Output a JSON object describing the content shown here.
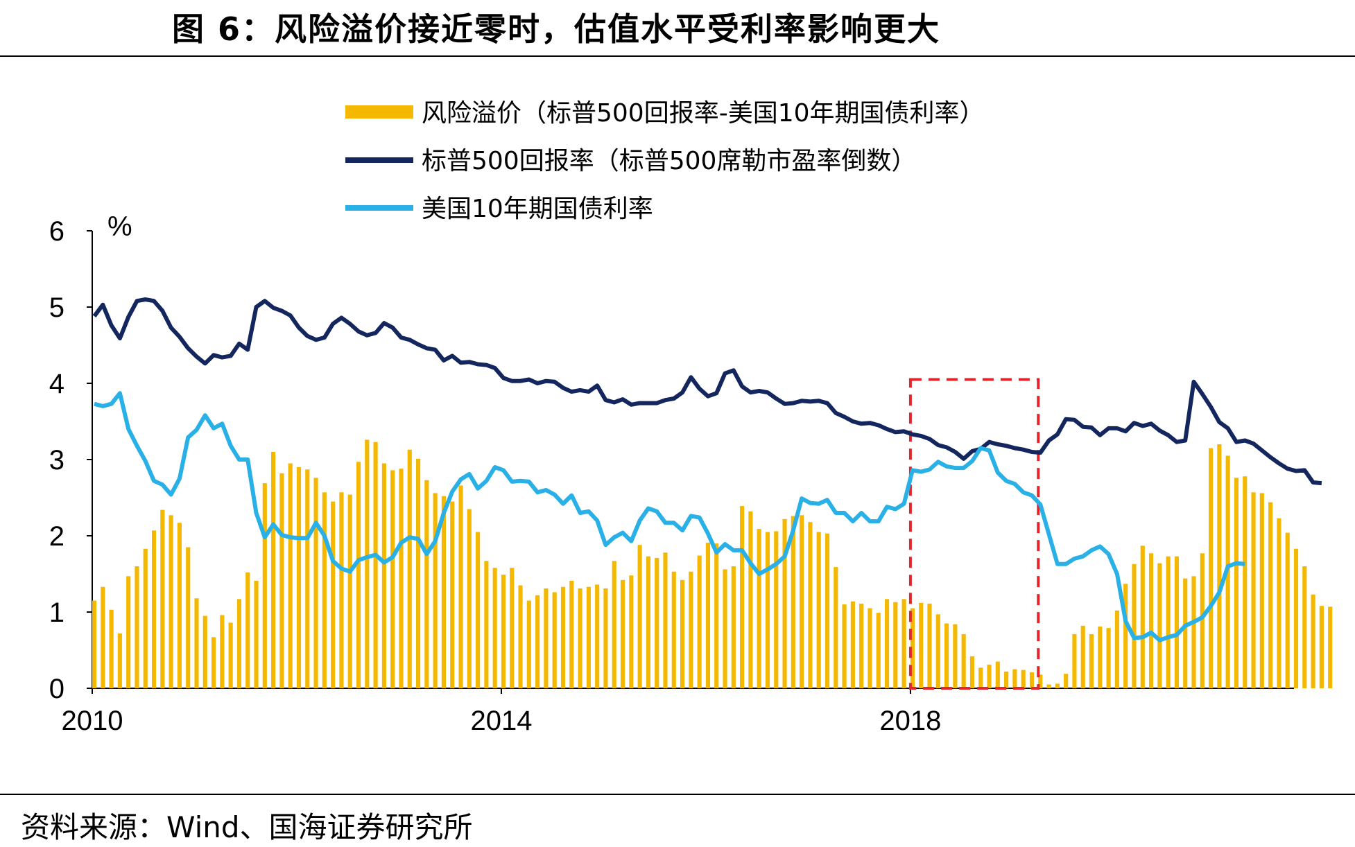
{
  "title": "图 6：风险溢价接近零时，估值水平受利率影响更大",
  "source": "资料来源：Wind、国海证券研究所",
  "chart_data": {
    "type": "bar+line",
    "unit_label": "%",
    "ylim": [
      0,
      6
    ],
    "yticks": [
      "0",
      "1",
      "2",
      "3",
      "4",
      "5",
      "6"
    ],
    "xlim": [
      2010,
      2021.75
    ],
    "xticks": [
      {
        "value": 2010,
        "label": "2010"
      },
      {
        "value": 2014,
        "label": "2014"
      },
      {
        "value": 2018,
        "label": "2018"
      }
    ],
    "highlight_box": {
      "x": [
        2018.0,
        2019.25
      ],
      "y": [
        0,
        4.05
      ]
    },
    "colors": {
      "premium": "#F5B800",
      "spx": "#14265E",
      "ust": "#29B0E6",
      "highlight": "#E3262B"
    },
    "series": [
      {
        "name": "风险溢价（标普500回报率-美国10年期国债利率）",
        "type": "bar",
        "values": [
          1.15,
          1.33,
          1.03,
          0.72,
          1.47,
          1.6,
          1.83,
          2.07,
          2.34,
          2.27,
          2.17,
          1.85,
          1.18,
          0.95,
          0.67,
          0.96,
          0.86,
          1.17,
          1.52,
          1.41,
          2.69,
          3.1,
          2.82,
          2.95,
          2.9,
          2.87,
          2.76,
          2.57,
          2.45,
          2.57,
          2.54,
          2.97,
          3.26,
          3.23,
          2.95,
          2.86,
          2.88,
          3.13,
          3.01,
          2.73,
          2.56,
          2.52,
          2.45,
          2.66,
          2.35,
          2.05,
          1.67,
          1.58,
          1.49,
          1.58,
          1.35,
          1.15,
          1.22,
          1.31,
          1.26,
          1.33,
          1.41,
          1.31,
          1.33,
          1.36,
          1.31,
          1.67,
          1.42,
          1.48,
          1.88,
          1.73,
          1.71,
          1.78,
          1.53,
          1.42,
          1.53,
          1.74,
          1.91,
          1.9,
          1.56,
          1.6,
          2.39,
          2.32,
          2.09,
          2.05,
          2.06,
          2.22,
          2.26,
          2.27,
          2.18,
          2.05,
          2.03,
          1.59,
          1.1,
          1.14,
          1.11,
          1.05,
          0.99,
          1.17,
          1.13,
          1.17,
          1.05,
          1.12,
          1.11,
          0.97,
          0.85,
          0.84,
          0.71,
          0.42,
          0.27,
          0.31,
          0.35,
          0.22,
          0.25,
          0.24,
          0.21,
          0.18,
          0.05,
          0.06,
          0.19,
          0.71,
          0.82,
          0.71,
          0.81,
          0.79,
          1.02,
          1.37,
          1.63,
          1.87,
          1.77,
          1.64,
          1.73,
          1.73,
          1.44,
          1.47,
          1.77,
          3.15,
          3.2,
          3.05,
          2.76,
          2.78,
          2.57,
          2.56,
          2.44,
          2.23,
          2.04,
          1.83,
          1.6,
          1.23,
          1.08,
          1.07
        ]
      },
      {
        "name": "标普500回报率（标普500席勒市盈率倒数）",
        "type": "line",
        "values": [
          4.88,
          5.03,
          4.76,
          4.59,
          4.87,
          5.08,
          5.1,
          5.08,
          4.95,
          4.73,
          4.61,
          4.46,
          4.35,
          4.26,
          4.37,
          4.34,
          4.36,
          4.52,
          4.44,
          5.0,
          5.08,
          4.99,
          4.95,
          4.89,
          4.73,
          4.62,
          4.57,
          4.6,
          4.78,
          4.86,
          4.78,
          4.68,
          4.63,
          4.66,
          4.79,
          4.73,
          4.6,
          4.57,
          4.51,
          4.46,
          4.44,
          4.3,
          4.36,
          4.27,
          4.28,
          4.25,
          4.24,
          4.2,
          4.07,
          4.03,
          4.03,
          4.05,
          4.0,
          4.03,
          4.02,
          3.94,
          3.89,
          3.91,
          3.89,
          3.97,
          3.78,
          3.75,
          3.79,
          3.72,
          3.74,
          3.74,
          3.74,
          3.78,
          3.8,
          3.88,
          4.08,
          3.93,
          3.83,
          3.87,
          4.13,
          4.17,
          3.96,
          3.88,
          3.9,
          3.88,
          3.8,
          3.73,
          3.74,
          3.77,
          3.76,
          3.77,
          3.74,
          3.61,
          3.56,
          3.5,
          3.47,
          3.48,
          3.45,
          3.4,
          3.36,
          3.37,
          3.33,
          3.31,
          3.27,
          3.19,
          3.16,
          3.1,
          3.01,
          3.11,
          3.14,
          3.23,
          3.2,
          3.18,
          3.15,
          3.13,
          3.1,
          3.09,
          3.25,
          3.33,
          3.53,
          3.52,
          3.43,
          3.42,
          3.32,
          3.41,
          3.41,
          3.37,
          3.48,
          3.44,
          3.47,
          3.38,
          3.32,
          3.23,
          3.25,
          4.02,
          3.86,
          3.69,
          3.49,
          3.41,
          3.23,
          3.25,
          3.21,
          3.12,
          3.03,
          2.95,
          2.88,
          2.85,
          2.86,
          2.7,
          2.69
        ]
      },
      {
        "name": "美国10年期国债利率",
        "type": "line",
        "values": [
          3.73,
          3.7,
          3.73,
          3.87,
          3.4,
          3.18,
          2.98,
          2.72,
          2.67,
          2.54,
          2.75,
          3.29,
          3.39,
          3.58,
          3.41,
          3.47,
          3.18,
          3.0,
          3.0,
          2.3,
          1.98,
          2.15,
          2.01,
          1.98,
          1.97,
          1.97,
          2.17,
          2.0,
          1.67,
          1.57,
          1.53,
          1.68,
          1.72,
          1.75,
          1.65,
          1.72,
          1.91,
          1.98,
          1.96,
          1.76,
          1.93,
          2.3,
          2.58,
          2.74,
          2.81,
          2.62,
          2.72,
          2.9,
          2.86,
          2.71,
          2.72,
          2.71,
          2.57,
          2.6,
          2.54,
          2.42,
          2.53,
          2.3,
          2.32,
          2.2,
          1.88,
          1.98,
          2.04,
          1.93,
          2.2,
          2.36,
          2.32,
          2.17,
          2.17,
          2.07,
          2.26,
          2.24,
          2.03,
          1.78,
          1.89,
          1.81,
          1.81,
          1.64,
          1.5,
          1.56,
          1.63,
          1.73,
          2.07,
          2.49,
          2.43,
          2.42,
          2.47,
          2.3,
          2.3,
          2.19,
          2.3,
          2.19,
          2.19,
          2.38,
          2.35,
          2.42,
          2.86,
          2.84,
          2.87,
          2.97,
          2.91,
          2.89,
          2.89,
          2.98,
          3.15,
          3.12,
          2.83,
          2.72,
          2.68,
          2.57,
          2.53,
          2.41,
          2.02,
          1.63,
          1.63,
          1.7,
          1.73,
          1.81,
          1.86,
          1.76,
          1.5,
          0.88,
          0.66,
          0.67,
          0.73,
          0.63,
          0.67,
          0.7,
          0.82,
          0.87,
          0.93,
          1.08,
          1.26,
          1.6,
          1.64,
          1.63
        ]
      }
    ]
  }
}
